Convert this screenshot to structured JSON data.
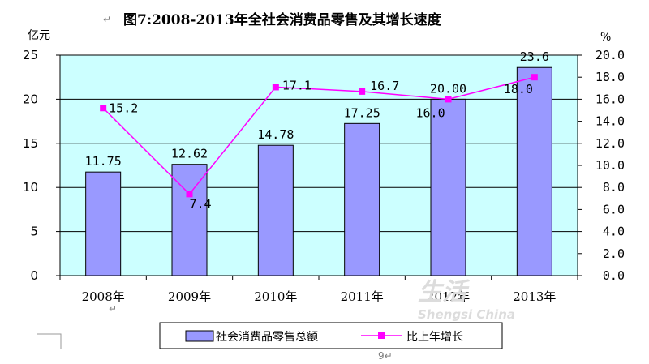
{
  "chart_data": {
    "type": "bar",
    "title": "图7:2008-2013年全社会消费品零售及其增长速度",
    "categories": [
      "2008年",
      "2009年",
      "2010年",
      "2011年",
      "2012年",
      "2013年"
    ],
    "y_left": {
      "unit": "亿元",
      "range": [
        0,
        25
      ],
      "ticks": [
        "0",
        "5",
        "10",
        "15",
        "20",
        "25"
      ]
    },
    "y_right": {
      "unit": "%",
      "range": [
        0,
        20
      ],
      "ticks": [
        "0.0",
        "2.0",
        "4.0",
        "6.0",
        "8.0",
        "10.0",
        "12.0",
        "14.0",
        "16.0",
        "18.0",
        "20.0"
      ]
    },
    "series": [
      {
        "name": "社会消费品零售总额",
        "type": "bar",
        "axis": "left",
        "values": [
          11.75,
          12.62,
          14.78,
          17.25,
          20.0,
          23.6
        ],
        "labels": [
          "11.75",
          "12.62",
          "14.78",
          "17.25",
          "20.00",
          "23.6"
        ],
        "color": "#9999ff"
      },
      {
        "name": "比上年增长",
        "type": "line",
        "axis": "right",
        "values": [
          15.2,
          7.4,
          17.1,
          16.7,
          16.0,
          18.0
        ],
        "labels": [
          "15.2",
          "7.4",
          "17.1",
          "16.7",
          "16.0",
          "18.0"
        ],
        "color": "#ff00ff"
      }
    ],
    "plot_background": "#ccffff",
    "grid": true,
    "legend": "bottom"
  },
  "watermark": {
    "chars": "生活",
    "text": "Shengsi China"
  },
  "marks": {
    "return": "↵",
    "page": "9↵"
  }
}
